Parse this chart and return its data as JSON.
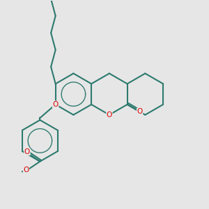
{
  "bg_color": "#e6e6e6",
  "bond_color": "#2d7a6e",
  "atom_color": "#dd0000",
  "lw": 1.5,
  "figsize": [
    3.0,
    3.0
  ],
  "dpi": 100,
  "xlim": [
    -2.5,
    5.5
  ],
  "ylim": [
    -5.5,
    4.5
  ]
}
